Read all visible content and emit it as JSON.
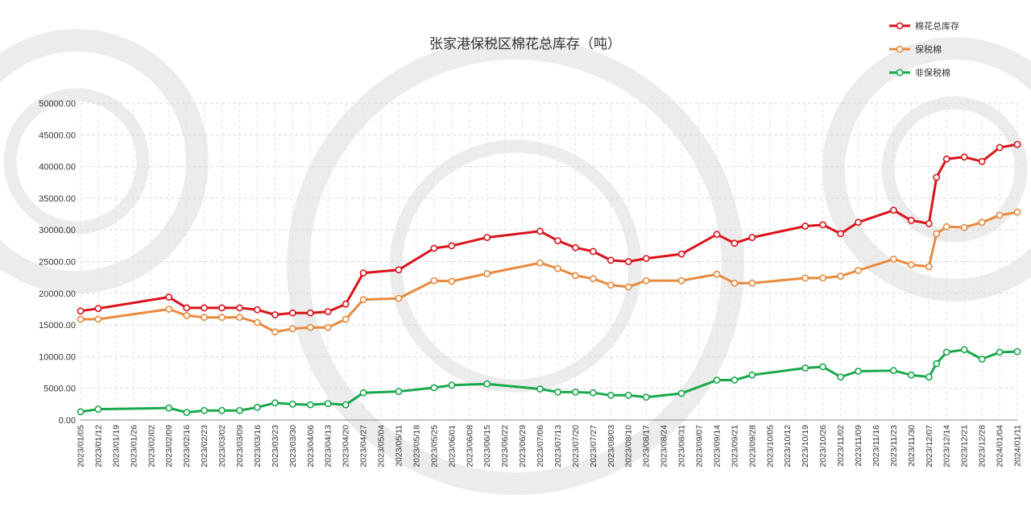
{
  "colors": {
    "total": "#d9131b",
    "bonded": "#e78a3e",
    "nonbonded": "#19a84b",
    "watermark": "#ececec"
  },
  "chart_data": {
    "type": "line",
    "title": "张家港保税区棉花总库存（吨）",
    "xlabel": "",
    "ylabel": "",
    "ylim": [
      0,
      50000
    ],
    "yticks": [
      "0.00",
      "5000.00",
      "10000.00",
      "15000.00",
      "20000.00",
      "25000.00",
      "30000.00",
      "35000.00",
      "40000.00",
      "45000.00",
      "50000.00"
    ],
    "grid": true,
    "legend_position": "top-right",
    "x_ticks": [
      "2023/01/05",
      "2023/01/12",
      "2023/01/19",
      "2023/01/26",
      "2023/02/02",
      "2023/02/09",
      "2023/02/16",
      "2023/02/23",
      "2023/03/02",
      "2023/03/09",
      "2023/03/16",
      "2023/03/23",
      "2023/03/30",
      "2023/04/06",
      "2023/04/13",
      "2023/04/20",
      "2023/04/27",
      "2023/05/04",
      "2023/05/11",
      "2023/05/18",
      "2023/05/25",
      "2023/06/01",
      "2023/06/08",
      "2023/06/15",
      "2023/06/22",
      "2023/06/29",
      "2023/07/06",
      "2023/07/13",
      "2023/07/20",
      "2023/07/27",
      "2023/08/03",
      "2023/08/10",
      "2023/08/17",
      "2023/08/24",
      "2023/08/31",
      "2023/09/07",
      "2023/09/14",
      "2023/09/21",
      "2023/09/28",
      "2023/10/05",
      "2023/10/12",
      "2023/10/19",
      "2023/10/26",
      "2023/11/02",
      "2023/11/09",
      "2023/11/16",
      "2023/11/23",
      "2023/11/30",
      "2023/12/07",
      "2023/12/14",
      "2023/12/21",
      "2023/12/28",
      "2024/01/04",
      "2024/01/11"
    ],
    "series": [
      {
        "name": "棉花总库存",
        "color_key": "total",
        "points": [
          [
            "2023/01/05",
            17200
          ],
          [
            "2023/01/12",
            17600
          ],
          [
            "2023/02/09",
            19400
          ],
          [
            "2023/02/16",
            17700
          ],
          [
            "2023/02/23",
            17700
          ],
          [
            "2023/03/02",
            17700
          ],
          [
            "2023/03/09",
            17700
          ],
          [
            "2023/03/16",
            17400
          ],
          [
            "2023/03/23",
            16600
          ],
          [
            "2023/03/30",
            16900
          ],
          [
            "2023/04/06",
            16900
          ],
          [
            "2023/04/13",
            17100
          ],
          [
            "2023/04/20",
            18300
          ],
          [
            "2023/04/27",
            23200
          ],
          [
            "2023/05/11",
            23700
          ],
          [
            "2023/05/25",
            27100
          ],
          [
            "2023/06/01",
            27500
          ],
          [
            "2023/06/15",
            28800
          ],
          [
            "2023/07/06",
            29800
          ],
          [
            "2023/07/13",
            28300
          ],
          [
            "2023/07/20",
            27200
          ],
          [
            "2023/07/27",
            26600
          ],
          [
            "2023/08/03",
            25200
          ],
          [
            "2023/08/10",
            25000
          ],
          [
            "2023/08/17",
            25500
          ],
          [
            "2023/08/31",
            26200
          ],
          [
            "2023/09/14",
            29300
          ],
          [
            "2023/09/21",
            27900
          ],
          [
            "2023/09/28",
            28800
          ],
          [
            "2023/10/19",
            30600
          ],
          [
            "2023/10/26",
            30800
          ],
          [
            "2023/11/02",
            29400
          ],
          [
            "2023/11/09",
            31200
          ],
          [
            "2023/11/23",
            33100
          ],
          [
            "2023/11/30",
            31500
          ],
          [
            "2023/12/07",
            31000
          ],
          [
            "2023/12/10",
            38300
          ],
          [
            "2023/12/14",
            41200
          ],
          [
            "2023/12/21",
            41500
          ],
          [
            "2023/12/28",
            40800
          ],
          [
            "2024/01/04",
            43000
          ],
          [
            "2024/01/11",
            43500
          ]
        ]
      },
      {
        "name": "保税棉",
        "color_key": "bonded",
        "points": [
          [
            "2023/01/05",
            15900
          ],
          [
            "2023/01/12",
            15900
          ],
          [
            "2023/02/09",
            17500
          ],
          [
            "2023/02/16",
            16500
          ],
          [
            "2023/02/23",
            16200
          ],
          [
            "2023/03/02",
            16200
          ],
          [
            "2023/03/09",
            16200
          ],
          [
            "2023/03/16",
            15400
          ],
          [
            "2023/03/23",
            13900
          ],
          [
            "2023/03/30",
            14400
          ],
          [
            "2023/04/06",
            14600
          ],
          [
            "2023/04/13",
            14600
          ],
          [
            "2023/04/20",
            15900
          ],
          [
            "2023/04/27",
            19000
          ],
          [
            "2023/05/11",
            19200
          ],
          [
            "2023/05/25",
            22000
          ],
          [
            "2023/06/01",
            21900
          ],
          [
            "2023/06/15",
            23100
          ],
          [
            "2023/07/06",
            24800
          ],
          [
            "2023/07/13",
            23900
          ],
          [
            "2023/07/20",
            22800
          ],
          [
            "2023/07/27",
            22300
          ],
          [
            "2023/08/03",
            21300
          ],
          [
            "2023/08/10",
            21000
          ],
          [
            "2023/08/17",
            22000
          ],
          [
            "2023/08/31",
            22000
          ],
          [
            "2023/09/14",
            23000
          ],
          [
            "2023/09/21",
            21600
          ],
          [
            "2023/09/28",
            21600
          ],
          [
            "2023/10/19",
            22400
          ],
          [
            "2023/10/26",
            22400
          ],
          [
            "2023/11/02",
            22700
          ],
          [
            "2023/11/09",
            23600
          ],
          [
            "2023/11/23",
            25400
          ],
          [
            "2023/11/30",
            24500
          ],
          [
            "2023/12/07",
            24200
          ],
          [
            "2023/12/10",
            29400
          ],
          [
            "2023/12/14",
            30500
          ],
          [
            "2023/12/21",
            30400
          ],
          [
            "2023/12/28",
            31200
          ],
          [
            "2024/01/04",
            32300
          ],
          [
            "2024/01/11",
            32800
          ]
        ]
      },
      {
        "name": "非保税棉",
        "color_key": "nonbonded",
        "points": [
          [
            "2023/01/05",
            1300
          ],
          [
            "2023/01/12",
            1700
          ],
          [
            "2023/02/09",
            1900
          ],
          [
            "2023/02/16",
            1200
          ],
          [
            "2023/02/23",
            1500
          ],
          [
            "2023/03/02",
            1500
          ],
          [
            "2023/03/09",
            1500
          ],
          [
            "2023/03/16",
            2000
          ],
          [
            "2023/03/23",
            2700
          ],
          [
            "2023/03/30",
            2500
          ],
          [
            "2023/04/06",
            2400
          ],
          [
            "2023/04/13",
            2600
          ],
          [
            "2023/04/20",
            2400
          ],
          [
            "2023/04/27",
            4300
          ],
          [
            "2023/05/11",
            4500
          ],
          [
            "2023/05/25",
            5100
          ],
          [
            "2023/06/01",
            5500
          ],
          [
            "2023/06/15",
            5700
          ],
          [
            "2023/07/06",
            4900
          ],
          [
            "2023/07/13",
            4400
          ],
          [
            "2023/07/20",
            4400
          ],
          [
            "2023/07/27",
            4300
          ],
          [
            "2023/08/03",
            3900
          ],
          [
            "2023/08/10",
            3900
          ],
          [
            "2023/08/17",
            3600
          ],
          [
            "2023/08/31",
            4200
          ],
          [
            "2023/09/14",
            6300
          ],
          [
            "2023/09/21",
            6300
          ],
          [
            "2023/09/28",
            7100
          ],
          [
            "2023/10/19",
            8200
          ],
          [
            "2023/10/26",
            8400
          ],
          [
            "2023/11/02",
            6800
          ],
          [
            "2023/11/09",
            7700
          ],
          [
            "2023/11/23",
            7800
          ],
          [
            "2023/11/30",
            7100
          ],
          [
            "2023/12/07",
            6800
          ],
          [
            "2023/12/10",
            8900
          ],
          [
            "2023/12/14",
            10700
          ],
          [
            "2023/12/21",
            11100
          ],
          [
            "2023/12/28",
            9600
          ],
          [
            "2024/01/04",
            10700
          ],
          [
            "2024/01/11",
            10800
          ]
        ]
      }
    ]
  }
}
